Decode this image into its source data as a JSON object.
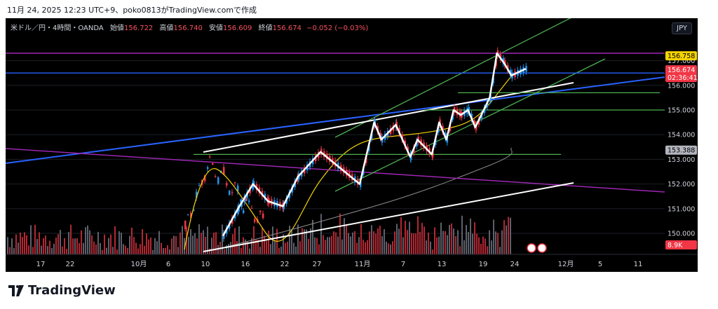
{
  "caption": "11月 24, 2025 12:23 UTC+9、poko0813がTradingView.comで作成",
  "legend": {
    "symbol": "米ドル／円・4時間・OANDA",
    "open_label": "始値",
    "open": "156.722",
    "high_label": "高値",
    "high": "156.740",
    "low_label": "安値",
    "low": "156.609",
    "close_label": "終値",
    "close": "156.674",
    "change": "−0.052 (−0.03%)"
  },
  "currency_badge": "JPY",
  "brand": "TradingView",
  "colors": {
    "background": "#000000",
    "up": "#ffffff",
    "down": "#f23645",
    "blue_line": "#2962ff",
    "purple_line": "#9c27b0",
    "green_line": "#4caf50",
    "white_line": "#ffffff",
    "ma_yellow": "#f5d300",
    "ma_gray": "#8a8a8a",
    "volume_up": "#5d606b",
    "volume_down": "#b22833"
  },
  "chart_data": {
    "type": "candlestick",
    "symbol": "USDJPY",
    "interval": "4h",
    "ylim": [
      149.5,
      157.5
    ],
    "y_ticks": [
      "150.000",
      "151.000",
      "152.000",
      "153.000",
      "154.000",
      "155.000",
      "156.000",
      "157.000"
    ],
    "x_ticks": [
      "17",
      "22",
      "10月",
      "6",
      "10",
      "16",
      "22",
      "27",
      "11月",
      "7",
      "13",
      "19",
      "24",
      "12月",
      "5",
      "11"
    ],
    "price_labels": {
      "high_marker": "156.758",
      "last_price": "156.674",
      "countdown": "02:36:41",
      "ma_value": "153.388",
      "volume": "8.9K"
    },
    "price_path": [
      {
        "date": "Oct 17",
        "price": 149.9
      },
      {
        "date": "Oct 19",
        "price": 151.0
      },
      {
        "date": "Oct 21",
        "price": 152.0
      },
      {
        "date": "Oct 23",
        "price": 151.3
      },
      {
        "date": "Oct 25",
        "price": 151.1
      },
      {
        "date": "Oct 27",
        "price": 152.3
      },
      {
        "date": "Oct 30",
        "price": 153.3
      },
      {
        "date": "Nov 1",
        "price": 152.0
      },
      {
        "date": "Nov 3",
        "price": 154.5
      },
      {
        "date": "Nov 4",
        "price": 153.8
      },
      {
        "date": "Nov 6",
        "price": 154.4
      },
      {
        "date": "Nov 8",
        "price": 153.1
      },
      {
        "date": "Nov 9",
        "price": 153.8
      },
      {
        "date": "Nov 11",
        "price": 153.2
      },
      {
        "date": "Nov 12",
        "price": 154.5
      },
      {
        "date": "Nov 13",
        "price": 153.8
      },
      {
        "date": "Nov 14",
        "price": 155.0
      },
      {
        "date": "Nov 15",
        "price": 154.8
      },
      {
        "date": "Nov 16",
        "price": 155.0
      },
      {
        "date": "Nov 17",
        "price": 154.3
      },
      {
        "date": "Nov 19",
        "price": 155.5
      },
      {
        "date": "Nov 20",
        "price": 157.3
      },
      {
        "date": "Nov 21",
        "price": 156.9
      },
      {
        "date": "Nov 22",
        "price": 156.4
      },
      {
        "date": "Nov 24",
        "price": 156.674
      }
    ],
    "horizontal_lines": [
      {
        "color": "purple",
        "price": 157.3
      },
      {
        "color": "blue",
        "price": 156.5
      },
      {
        "color": "green",
        "price": 155.7
      },
      {
        "color": "green",
        "price": 155.0
      },
      {
        "color": "green",
        "price": 153.2
      }
    ]
  }
}
